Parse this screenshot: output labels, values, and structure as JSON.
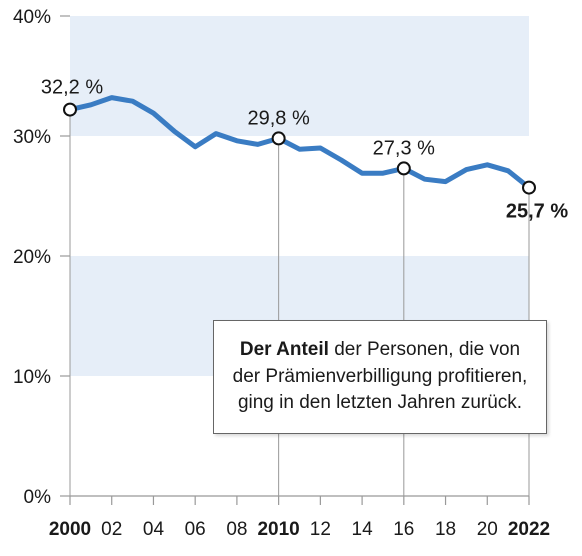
{
  "chart_data": {
    "type": "line",
    "title": "",
    "xlabel": "",
    "ylabel": "",
    "xlim": [
      2000,
      2022
    ],
    "ylim": [
      0,
      40
    ],
    "y_ticks": [
      "0%",
      "10%",
      "20%",
      "30%",
      "40%"
    ],
    "x_ticks": [
      {
        "value": 2000,
        "label": "2000",
        "bold": true
      },
      {
        "value": 2002,
        "label": "02",
        "bold": false
      },
      {
        "value": 2004,
        "label": "04",
        "bold": false
      },
      {
        "value": 2006,
        "label": "06",
        "bold": false
      },
      {
        "value": 2008,
        "label": "08",
        "bold": false
      },
      {
        "value": 2010,
        "label": "2010",
        "bold": true
      },
      {
        "value": 2012,
        "label": "12",
        "bold": false
      },
      {
        "value": 2014,
        "label": "14",
        "bold": false
      },
      {
        "value": 2016,
        "label": "16",
        "bold": false
      },
      {
        "value": 2018,
        "label": "18",
        "bold": false
      },
      {
        "value": 2020,
        "label": "20",
        "bold": false
      },
      {
        "value": 2022,
        "label": "2022",
        "bold": true
      }
    ],
    "bands": [
      [
        10,
        20
      ],
      [
        30,
        40
      ]
    ],
    "series": [
      {
        "x": [
          2000,
          2001,
          2002,
          2003,
          2004,
          2005,
          2006,
          2007,
          2008,
          2009,
          2010,
          2011,
          2012,
          2013,
          2014,
          2015,
          2016,
          2017,
          2018,
          2019,
          2020,
          2021,
          2022
        ],
        "values": [
          32.2,
          32.6,
          33.2,
          32.9,
          31.9,
          30.4,
          29.1,
          30.2,
          29.6,
          29.3,
          29.8,
          28.9,
          29.0,
          28.0,
          26.9,
          26.9,
          27.3,
          26.4,
          26.2,
          27.2,
          27.6,
          27.1,
          25.7
        ]
      }
    ],
    "highlights": [
      {
        "x": 2000,
        "y": 32.2,
        "label": "32,2 %",
        "bold": false
      },
      {
        "x": 2010,
        "y": 29.8,
        "label": "29,8 %",
        "bold": false
      },
      {
        "x": 2016,
        "y": 27.3,
        "label": "27,3 %",
        "bold": false
      },
      {
        "x": 2022,
        "y": 25.7,
        "label": "25,7 %",
        "bold": true
      }
    ],
    "colors": {
      "line": "#3a7cc3",
      "band": "#e6eef8",
      "axis": "#999999"
    },
    "grid": false,
    "legend": "none"
  },
  "note": {
    "bold": "Der Anteil",
    "text": " der Personen, die von der Prämienverbilligung profitieren, ging in den letzten Jahren zurück."
  }
}
